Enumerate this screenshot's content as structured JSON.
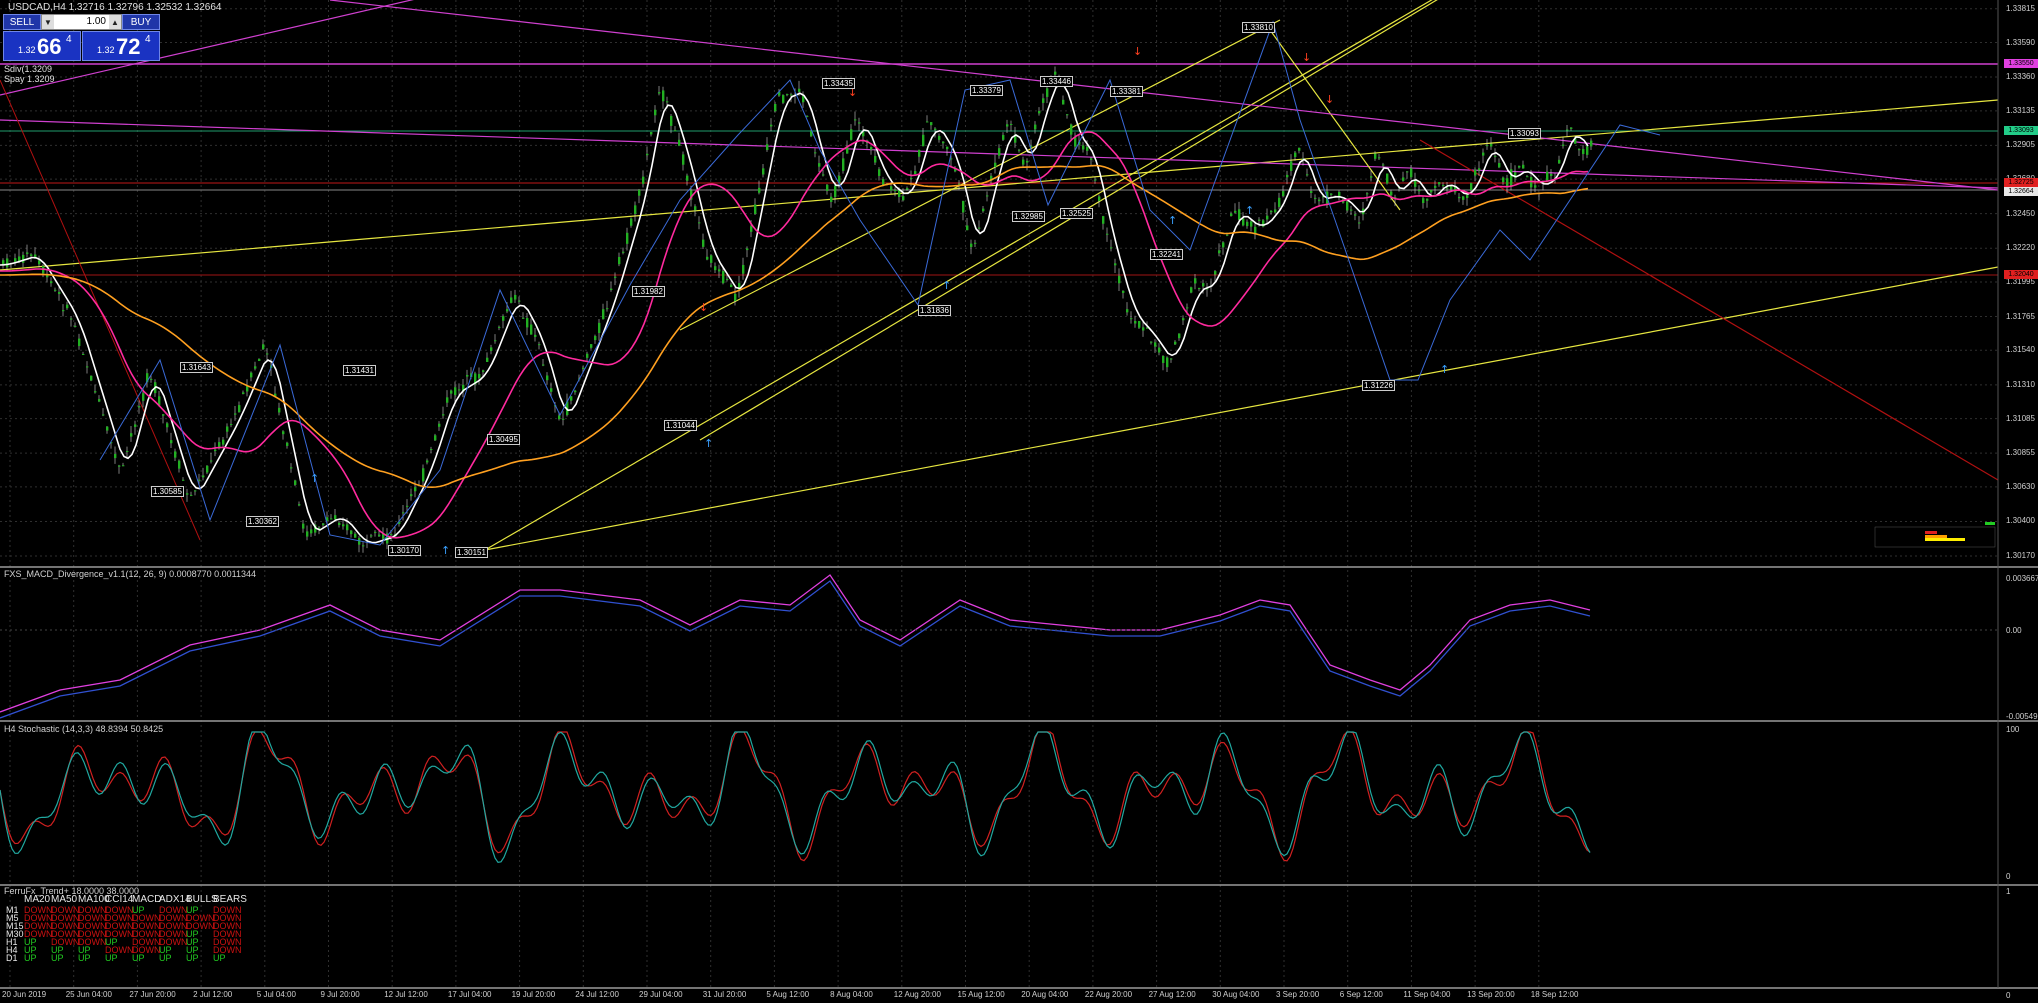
{
  "window": {
    "symbol_title": "USDCAD,H4  1.32716 1.32796 1.32532 1.32664"
  },
  "one_click": {
    "sell_label": "SELL",
    "buy_label": "BUY",
    "lot": "1.00",
    "sell_price_small": "1.32",
    "sell_price_big": "66",
    "sell_price_sup": "4",
    "buy_price_small": "1.32",
    "buy_price_big": "72",
    "buy_price_sup": "4"
  },
  "ma_labels": [
    "Sdiv(1.3209",
    "Spay 1.3209"
  ],
  "price_axis": [
    "1.33815",
    "1.33590",
    "1.33360",
    "1.33135",
    "1.32905",
    "1.32680",
    "1.32450",
    "1.32220",
    "1.31995",
    "1.31765",
    "1.31540",
    "1.31310",
    "1.31085",
    "1.30855",
    "1.30630",
    "1.30400",
    "1.30170"
  ],
  "price_tags": [
    {
      "text": "1.33550",
      "color": "#e040e0"
    },
    {
      "text": "1.33093",
      "color": "#22cc88"
    },
    {
      "text": "1.32725",
      "color": "#e02020"
    },
    {
      "text": "1.32664",
      "color": "#e8e8e8"
    },
    {
      "text": "1.32040",
      "color": "#e02020"
    }
  ],
  "swing_labels": [
    "1.33810",
    "1.33435",
    "1.33379",
    "1.33446",
    "1.33381",
    "1.33093",
    "1.32985",
    "1.32525",
    "1.32241",
    "1.31982",
    "1.31836",
    "1.31643",
    "1.31431",
    "1.31044",
    "1.31226",
    "1.30585",
    "1.30362",
    "1.30170",
    "1.30151",
    "1.30495"
  ],
  "macd": {
    "title": "FXS_MACD_Divergence_v1.1(12, 26, 9) 0.0008770 0.0011344",
    "axis": [
      "0.0036678",
      "0.00",
      "-0.00549"
    ]
  },
  "stoch": {
    "title": "H4 Stochastic (14,3,3) 48.8394 50.8425",
    "axis": [
      "100",
      "0"
    ]
  },
  "trend": {
    "title": "FerruFx_Trend+ 18.0000 38.0000",
    "axis": [
      "1",
      "0"
    ],
    "headers": [
      "MA20",
      "MA50",
      "MA100",
      "CCI14",
      "MACD",
      "ADX14",
      "BULLS",
      "BEARS"
    ],
    "rows": [
      {
        "tf": "M1",
        "cells": [
          "DOWN",
          "DOWN",
          "DOWN",
          "DOWN",
          "UP",
          "DOWN",
          "UP",
          "DOWN"
        ]
      },
      {
        "tf": "M5",
        "cells": [
          "DOWN",
          "DOWN",
          "DOWN",
          "DOWN",
          "DOWN",
          "DOWN",
          "DOWN",
          "DOWN"
        ]
      },
      {
        "tf": "M15",
        "cells": [
          "DOWN",
          "DOWN",
          "DOWN",
          "DOWN",
          "DOWN",
          "DOWN",
          "DOWN",
          "DOWN"
        ]
      },
      {
        "tf": "M30",
        "cells": [
          "DOWN",
          "DOWN",
          "DOWN",
          "DOWN",
          "DOWN",
          "DOWN",
          "UP",
          "DOWN"
        ]
      },
      {
        "tf": "H1",
        "cells": [
          "UP",
          "DOWN",
          "DOWN",
          "UP",
          "DOWN",
          "DOWN",
          "UP",
          "DOWN"
        ]
      },
      {
        "tf": "H4",
        "cells": [
          "UP",
          "UP",
          "UP",
          "DOWN",
          "DOWN",
          "UP",
          "UP",
          "DOWN"
        ]
      },
      {
        "tf": "D1",
        "cells": [
          "UP",
          "UP",
          "UP",
          "UP",
          "UP",
          "UP",
          "UP",
          "UP"
        ]
      }
    ]
  },
  "time_axis": [
    "20 Jun 2019",
    "25 Jun 04:00",
    "27 Jun 20:00",
    "2 Jul 12:00",
    "5 Jul 04:00",
    "9 Jul 20:00",
    "12 Jul 12:00",
    "17 Jul 04:00",
    "19 Jul 20:00",
    "24 Jul 12:00",
    "29 Jul 04:00",
    "31 Jul 20:00",
    "5 Aug 12:00",
    "8 Aug 04:00",
    "12 Aug 20:00",
    "15 Aug 12:00",
    "20 Aug 04:00",
    "22 Aug 20:00",
    "27 Aug 12:00",
    "30 Aug 04:00",
    "3 Sep 20:00",
    "6 Sep 12:00",
    "11 Sep 04:00",
    "13 Sep 20:00",
    "18 Sep 12:00"
  ],
  "colors": {
    "candle": "#22b022",
    "ma_fast": "#ffffff",
    "ma_mid": "#ff2a9e",
    "ma_slow": "#ffa020",
    "trend_line": "#e6e640",
    "magenta_line": "#d040d0",
    "grid": "#2f2f2f",
    "separator": "#9a9a9a"
  }
}
